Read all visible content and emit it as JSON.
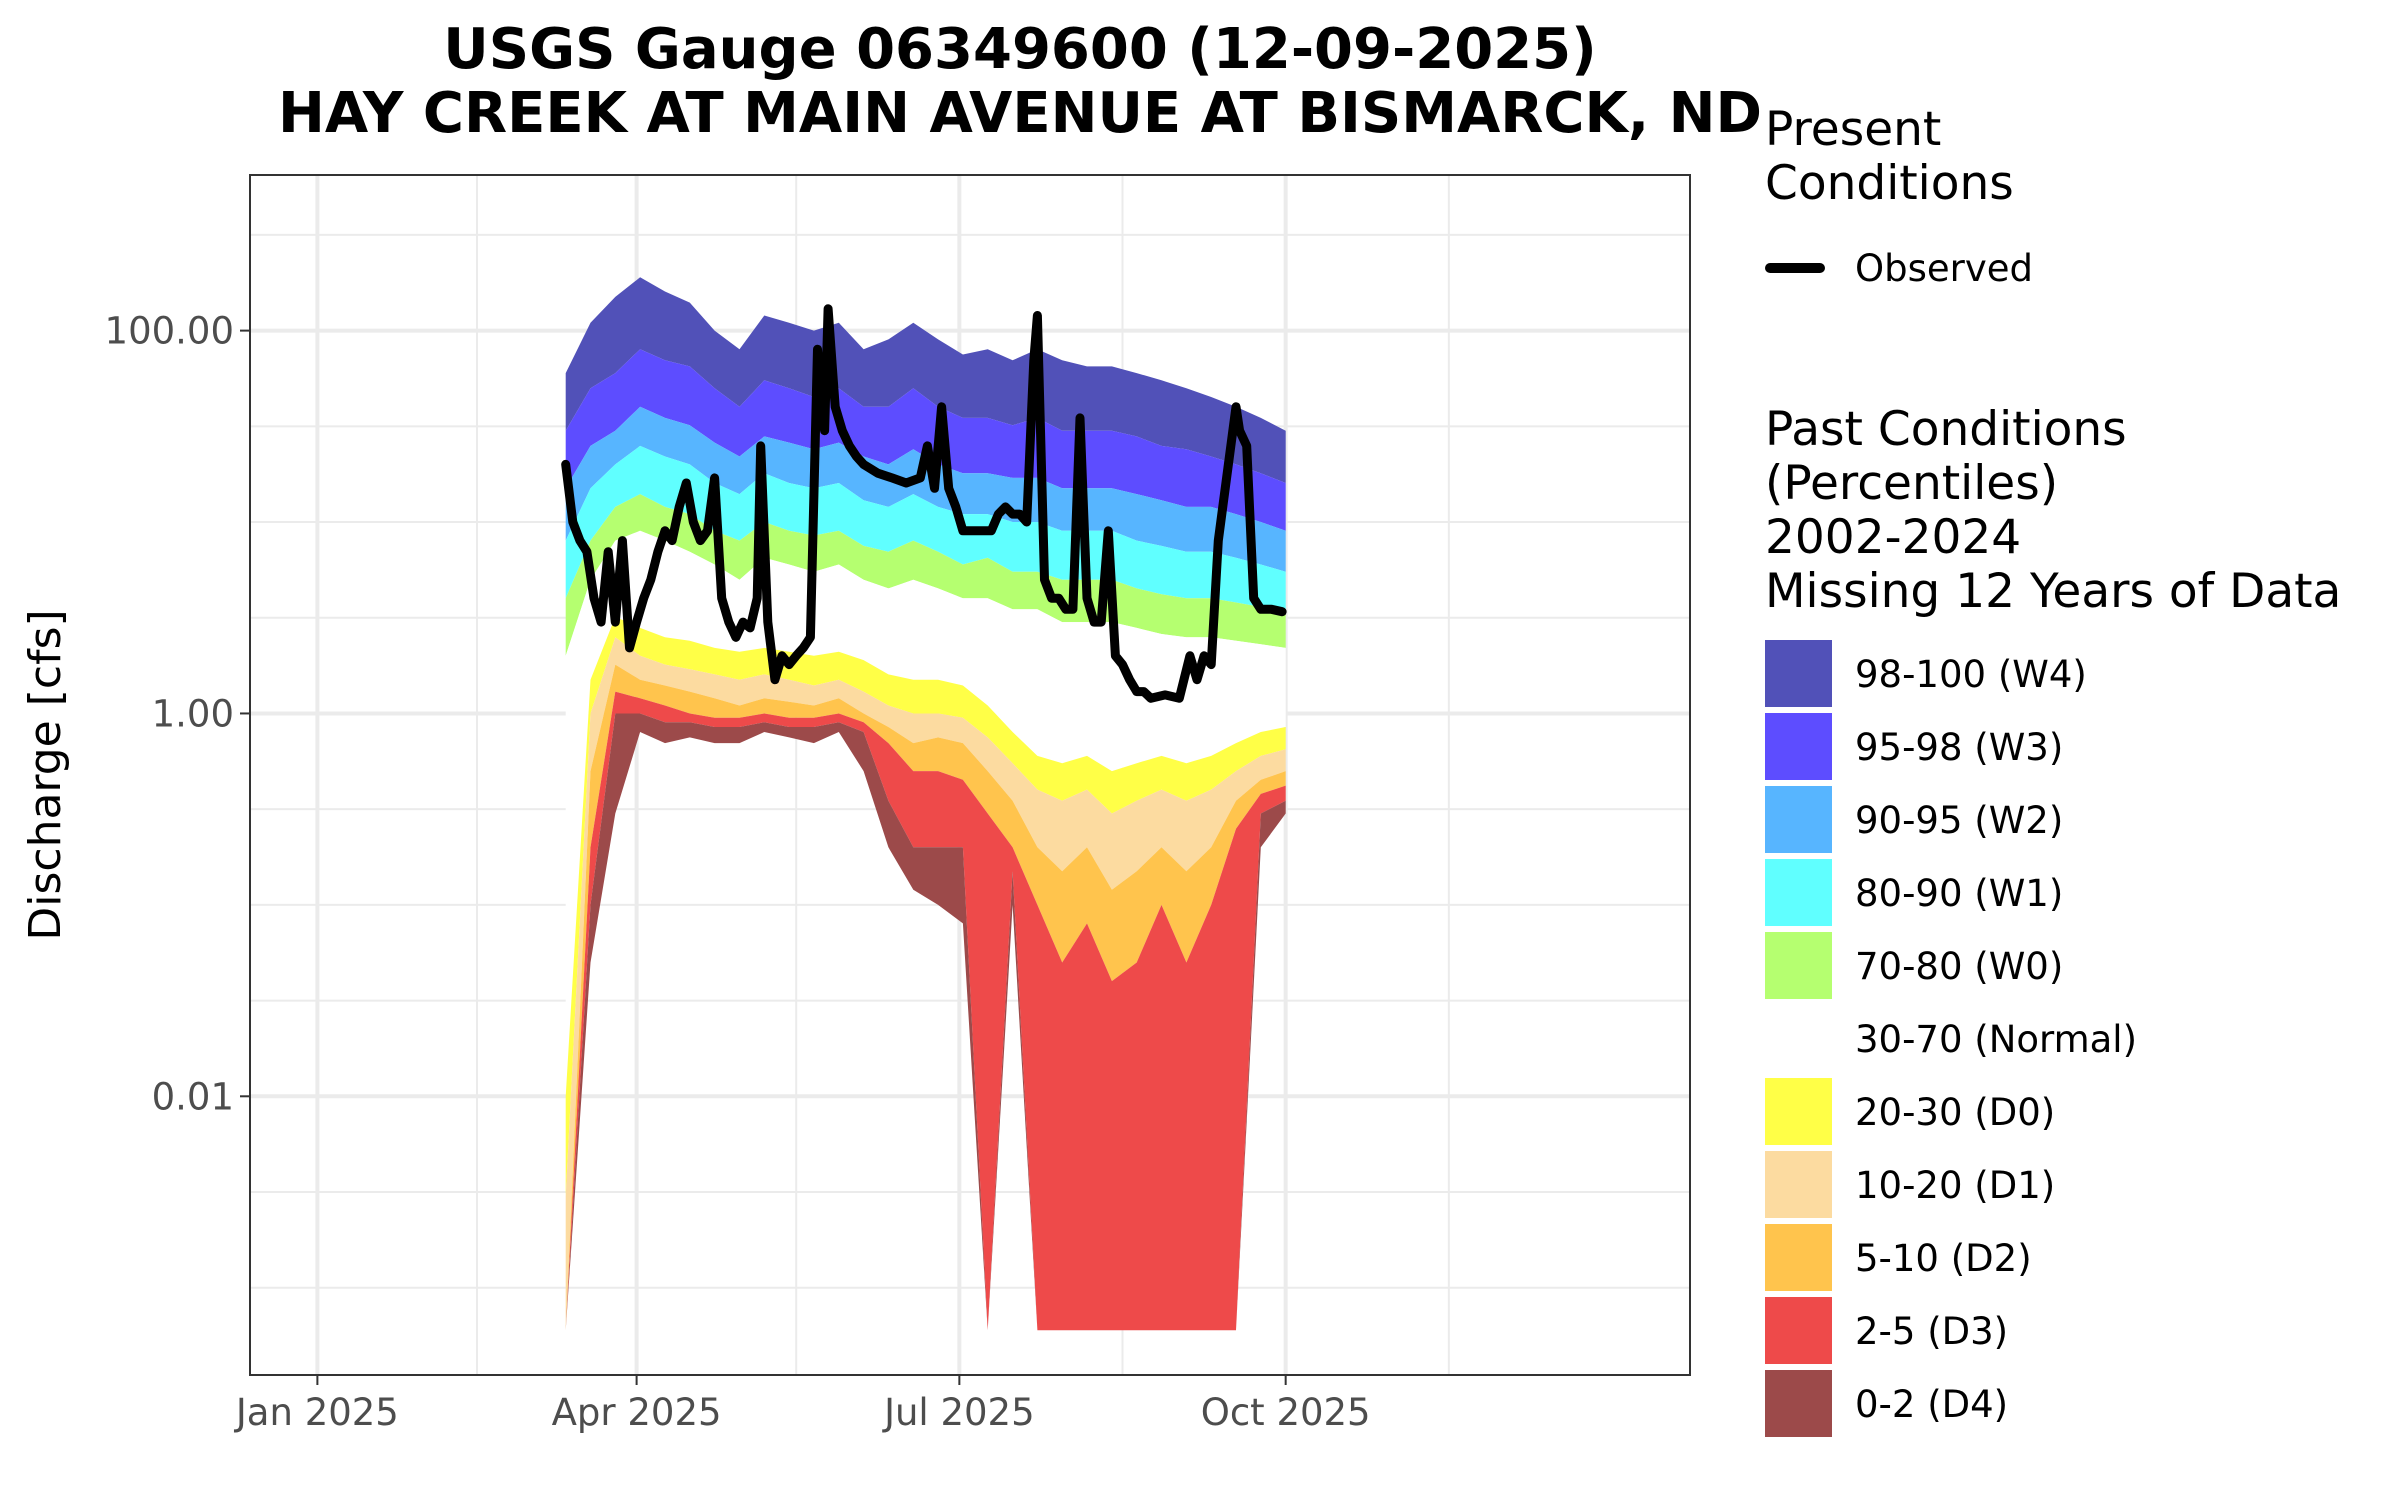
{
  "chart_data": {
    "type": "area",
    "title": "USGS Gauge 06349600 (12-09-2025)",
    "subtitle": "HAY CREEK AT MAIN AVENUE AT BISMARCK, ND",
    "ylabel": "Discharge [cfs]",
    "xlabel": "",
    "y_scale": "log10",
    "ylim": [
      0.00035,
      650
    ],
    "xlim": [
      "2024-12-13",
      "2026-01-23"
    ],
    "y_ticks": [
      {
        "value": 100,
        "label": "100.00"
      },
      {
        "value": 1,
        "label": "1.00"
      },
      {
        "value": 0.01,
        "label": "0.01"
      }
    ],
    "x_ticks": [
      {
        "date": "2025-01-01",
        "label": "Jan 2025"
      },
      {
        "date": "2025-04-01",
        "label": "Apr 2025"
      },
      {
        "date": "2025-07-01",
        "label": "Jul 2025"
      },
      {
        "date": "2025-10-01",
        "label": "Oct 2025"
      }
    ],
    "grid": true,
    "legend_position": "right",
    "legend_present_title": "Present Conditions",
    "legend_past_title": "Past Conditions (Percentiles) 2002-2024 Missing 12 Years of Data",
    "dates": [
      "2025-03-12",
      "2025-03-19",
      "2025-03-26",
      "2025-04-02",
      "2025-04-09",
      "2025-04-16",
      "2025-04-23",
      "2025-04-30",
      "2025-05-07",
      "2025-05-14",
      "2025-05-21",
      "2025-05-28",
      "2025-06-04",
      "2025-06-11",
      "2025-06-18",
      "2025-06-25",
      "2025-07-02",
      "2025-07-09",
      "2025-07-16",
      "2025-07-23",
      "2025-07-30",
      "2025-08-06",
      "2025-08-13",
      "2025-08-20",
      "2025-08-27",
      "2025-09-03",
      "2025-09-10",
      "2025-09-17",
      "2025-09-24",
      "2025-10-01"
    ],
    "percentile_bounds": {
      "p0": [
        0.0006,
        0.05,
        0.3,
        0.8,
        0.7,
        0.75,
        0.7,
        0.7,
        0.8,
        0.75,
        0.7,
        0.8,
        0.5,
        0.2,
        0.12,
        0.1,
        0.08,
        0.0006,
        0.1,
        0.0006,
        0.0006,
        0.0006,
        0.0006,
        0.0006,
        0.0006,
        0.0006,
        0.0006,
        0.0006,
        0.2,
        0.3
      ],
      "p2": [
        0.0006,
        0.1,
        1.0,
        1.0,
        0.9,
        0.9,
        0.85,
        0.85,
        0.9,
        0.85,
        0.85,
        0.9,
        0.8,
        0.35,
        0.2,
        0.2,
        0.2,
        0.0006,
        0.15,
        0.0006,
        0.0006,
        0.0006,
        0.0006,
        0.0006,
        0.0006,
        0.0006,
        0.0006,
        0.0006,
        0.3,
        0.35
      ],
      "p5": [
        0.0006,
        0.2,
        1.3,
        1.2,
        1.1,
        1.0,
        0.95,
        0.95,
        1.0,
        0.95,
        0.95,
        1.0,
        0.9,
        0.7,
        0.5,
        0.5,
        0.45,
        0.3,
        0.2,
        0.1,
        0.05,
        0.08,
        0.04,
        0.05,
        0.1,
        0.05,
        0.1,
        0.25,
        0.38,
        0.42
      ],
      "p10": [
        0.0006,
        0.5,
        1.8,
        1.5,
        1.4,
        1.3,
        1.2,
        1.1,
        1.2,
        1.15,
        1.1,
        1.2,
        1.0,
        0.85,
        0.7,
        0.75,
        0.7,
        0.5,
        0.35,
        0.2,
        0.15,
        0.2,
        0.12,
        0.15,
        0.2,
        0.15,
        0.2,
        0.35,
        0.45,
        0.5
      ],
      "p20": [
        0.003,
        1.0,
        2.5,
        2.0,
        1.8,
        1.7,
        1.6,
        1.5,
        1.6,
        1.5,
        1.4,
        1.5,
        1.3,
        1.1,
        1.0,
        1.0,
        0.95,
        0.75,
        0.55,
        0.4,
        0.35,
        0.4,
        0.3,
        0.35,
        0.4,
        0.35,
        0.4,
        0.5,
        0.6,
        0.65
      ],
      "p30": [
        0.01,
        1.5,
        3.2,
        2.8,
        2.5,
        2.4,
        2.2,
        2.1,
        2.2,
        2.1,
        2.0,
        2.1,
        1.9,
        1.6,
        1.5,
        1.5,
        1.4,
        1.1,
        0.8,
        0.6,
        0.55,
        0.6,
        0.5,
        0.55,
        0.6,
        0.55,
        0.6,
        0.7,
        0.8,
        0.85
      ],
      "p70": [
        2.0,
        5.0,
        8.0,
        9.0,
        8.0,
        7.0,
        6.0,
        5.0,
        6.5,
        6.0,
        5.5,
        6.0,
        5.0,
        4.5,
        5.0,
        4.5,
        4.0,
        4.0,
        3.5,
        3.5,
        3.0,
        3.0,
        3.0,
        2.8,
        2.6,
        2.5,
        2.5,
        2.4,
        2.3,
        2.2
      ],
      "p80": [
        4.0,
        8.0,
        12.0,
        14.0,
        12.0,
        11.0,
        9.0,
        8.0,
        10.0,
        9.0,
        8.5,
        9.0,
        7.5,
        7.0,
        8.0,
        7.0,
        6.0,
        6.5,
        5.5,
        5.5,
        5.0,
        5.0,
        5.0,
        4.5,
        4.2,
        4.0,
        4.0,
        3.8,
        3.6,
        3.5
      ],
      "p90": [
        8.0,
        15.0,
        20.0,
        25.0,
        22.0,
        20.0,
        16.0,
        14.0,
        18.0,
        16.0,
        15.0,
        16.0,
        13.0,
        12.0,
        14.0,
        12.0,
        11.0,
        11.0,
        10.0,
        10.0,
        9.0,
        9.0,
        9.0,
        8.0,
        7.5,
        7.0,
        7.0,
        6.5,
        6.0,
        5.5
      ],
      "p95": [
        15.0,
        25.0,
        30.0,
        40.0,
        35.0,
        32.0,
        26.0,
        22.0,
        28.0,
        26.0,
        24.0,
        26.0,
        22.0,
        20.0,
        24.0,
        20.0,
        18.0,
        18.0,
        17.0,
        17.0,
        15.0,
        15.0,
        15.0,
        14.0,
        13.0,
        12.0,
        12.0,
        11.0,
        10.0,
        9.0
      ],
      "p98": [
        30.0,
        50.0,
        60.0,
        80.0,
        70.0,
        65.0,
        50.0,
        40.0,
        55.0,
        50.0,
        45.0,
        50.0,
        40.0,
        40.0,
        50.0,
        40.0,
        35.0,
        35.0,
        32.0,
        35.0,
        30.0,
        30.0,
        30.0,
        28.0,
        25.0,
        24.0,
        22.0,
        20.0,
        18.0,
        16.0
      ],
      "p100": [
        60.0,
        110.0,
        150.0,
        190.0,
        160.0,
        140.0,
        100.0,
        80.0,
        120.0,
        110.0,
        100.0,
        110.0,
        80.0,
        90.0,
        110.0,
        90.0,
        75.0,
        80.0,
        70.0,
        80.0,
        70.0,
        65.0,
        65.0,
        60.0,
        55.0,
        50.0,
        45.0,
        40.0,
        35.0,
        30.0
      ]
    },
    "series": [
      {
        "name": "Observed",
        "color": "#000000",
        "points": [
          {
            "date": "2025-03-12",
            "y": 20
          },
          {
            "date": "2025-03-14",
            "y": 10
          },
          {
            "date": "2025-03-16",
            "y": 8
          },
          {
            "date": "2025-03-18",
            "y": 7
          },
          {
            "date": "2025-03-20",
            "y": 4
          },
          {
            "date": "2025-03-22",
            "y": 3
          },
          {
            "date": "2025-03-24",
            "y": 7
          },
          {
            "date": "2025-03-26",
            "y": 3
          },
          {
            "date": "2025-03-28",
            "y": 8
          },
          {
            "date": "2025-03-30",
            "y": 2.2
          },
          {
            "date": "2025-04-01",
            "y": 3
          },
          {
            "date": "2025-04-03",
            "y": 4
          },
          {
            "date": "2025-04-05",
            "y": 5
          },
          {
            "date": "2025-04-07",
            "y": 7
          },
          {
            "date": "2025-04-09",
            "y": 9
          },
          {
            "date": "2025-04-11",
            "y": 8
          },
          {
            "date": "2025-04-13",
            "y": 12
          },
          {
            "date": "2025-04-15",
            "y": 16
          },
          {
            "date": "2025-04-17",
            "y": 10
          },
          {
            "date": "2025-04-19",
            "y": 8
          },
          {
            "date": "2025-04-21",
            "y": 9
          },
          {
            "date": "2025-04-23",
            "y": 17
          },
          {
            "date": "2025-04-25",
            "y": 4
          },
          {
            "date": "2025-04-27",
            "y": 3
          },
          {
            "date": "2025-04-29",
            "y": 2.5
          },
          {
            "date": "2025-05-01",
            "y": 3
          },
          {
            "date": "2025-05-03",
            "y": 2.8
          },
          {
            "date": "2025-05-05",
            "y": 4
          },
          {
            "date": "2025-05-06",
            "y": 25
          },
          {
            "date": "2025-05-08",
            "y": 3
          },
          {
            "date": "2025-05-10",
            "y": 1.5
          },
          {
            "date": "2025-05-12",
            "y": 2
          },
          {
            "date": "2025-05-14",
            "y": 1.8
          },
          {
            "date": "2025-05-16",
            "y": 2
          },
          {
            "date": "2025-05-18",
            "y": 2.2
          },
          {
            "date": "2025-05-20",
            "y": 2.5
          },
          {
            "date": "2025-05-22",
            "y": 80
          },
          {
            "date": "2025-05-24",
            "y": 30
          },
          {
            "date": "2025-05-25",
            "y": 130
          },
          {
            "date": "2025-05-27",
            "y": 40
          },
          {
            "date": "2025-05-29",
            "y": 30
          },
          {
            "date": "2025-05-31",
            "y": 25
          },
          {
            "date": "2025-06-02",
            "y": 22
          },
          {
            "date": "2025-06-04",
            "y": 20
          },
          {
            "date": "2025-06-08",
            "y": 18
          },
          {
            "date": "2025-06-12",
            "y": 17
          },
          {
            "date": "2025-06-16",
            "y": 16
          },
          {
            "date": "2025-06-20",
            "y": 17
          },
          {
            "date": "2025-06-22",
            "y": 25
          },
          {
            "date": "2025-06-24",
            "y": 15
          },
          {
            "date": "2025-06-26",
            "y": 40
          },
          {
            "date": "2025-06-28",
            "y": 15
          },
          {
            "date": "2025-06-30",
            "y": 12
          },
          {
            "date": "2025-07-02",
            "y": 9
          },
          {
            "date": "2025-07-06",
            "y": 9
          },
          {
            "date": "2025-07-10",
            "y": 9
          },
          {
            "date": "2025-07-12",
            "y": 11
          },
          {
            "date": "2025-07-14",
            "y": 12
          },
          {
            "date": "2025-07-16",
            "y": 11
          },
          {
            "date": "2025-07-18",
            "y": 11
          },
          {
            "date": "2025-07-20",
            "y": 10
          },
          {
            "date": "2025-07-22",
            "y": 70
          },
          {
            "date": "2025-07-23",
            "y": 120
          },
          {
            "date": "2025-07-25",
            "y": 5
          },
          {
            "date": "2025-07-27",
            "y": 4
          },
          {
            "date": "2025-07-29",
            "y": 4
          },
          {
            "date": "2025-07-31",
            "y": 3.5
          },
          {
            "date": "2025-08-02",
            "y": 3.5
          },
          {
            "date": "2025-08-04",
            "y": 35
          },
          {
            "date": "2025-08-06",
            "y": 4
          },
          {
            "date": "2025-08-08",
            "y": 3
          },
          {
            "date": "2025-08-10",
            "y": 3
          },
          {
            "date": "2025-08-12",
            "y": 9
          },
          {
            "date": "2025-08-14",
            "y": 2
          },
          {
            "date": "2025-08-16",
            "y": 1.8
          },
          {
            "date": "2025-08-18",
            "y": 1.5
          },
          {
            "date": "2025-08-20",
            "y": 1.3
          },
          {
            "date": "2025-08-22",
            "y": 1.3
          },
          {
            "date": "2025-08-24",
            "y": 1.2
          },
          {
            "date": "2025-08-28",
            "y": 1.25
          },
          {
            "date": "2025-09-01",
            "y": 1.2
          },
          {
            "date": "2025-09-04",
            "y": 2
          },
          {
            "date": "2025-09-06",
            "y": 1.5
          },
          {
            "date": "2025-09-08",
            "y": 2
          },
          {
            "date": "2025-09-10",
            "y": 1.8
          },
          {
            "date": "2025-09-12",
            "y": 8
          },
          {
            "date": "2025-09-17",
            "y": 40
          },
          {
            "date": "2025-09-18",
            "y": 30
          },
          {
            "date": "2025-09-20",
            "y": 25
          },
          {
            "date": "2025-09-22",
            "y": 4
          },
          {
            "date": "2025-09-24",
            "y": 3.5
          },
          {
            "date": "2025-09-27",
            "y": 3.5
          },
          {
            "date": "2025-09-30",
            "y": 3.4
          }
        ]
      }
    ],
    "bands": [
      {
        "label": "98-100 (W4)",
        "lower": "p98",
        "upper": "p100",
        "color": "#5151b8"
      },
      {
        "label": "95-98 (W3)",
        "lower": "p95",
        "upper": "p98",
        "color": "#5d4dff"
      },
      {
        "label": "90-95 (W2)",
        "lower": "p90",
        "upper": "p95",
        "color": "#57b5ff"
      },
      {
        "label": "80-90 (W1)",
        "lower": "p80",
        "upper": "p90",
        "color": "#60ffff"
      },
      {
        "label": "70-80 (W0)",
        "lower": "p70",
        "upper": "p80",
        "color": "#b5ff70"
      },
      {
        "label": "30-70 (Normal)",
        "lower": "p30",
        "upper": "p70",
        "color": "#ffffff"
      },
      {
        "label": "20-30 (D0)",
        "lower": "p20",
        "upper": "p30",
        "color": "#ffff47"
      },
      {
        "label": "10-20 (D1)",
        "lower": "p10",
        "upper": "p20",
        "color": "#fcdba0"
      },
      {
        "label": "5-10 (D2)",
        "lower": "p5",
        "upper": "p10",
        "color": "#ffc44d"
      },
      {
        "label": "2-5 (D3)",
        "lower": "p2",
        "upper": "p5",
        "color": "#ee4a4a"
      },
      {
        "label": "0-2 (D4)",
        "lower": "p0",
        "upper": "p2",
        "color": "#9c4a4a"
      }
    ]
  }
}
